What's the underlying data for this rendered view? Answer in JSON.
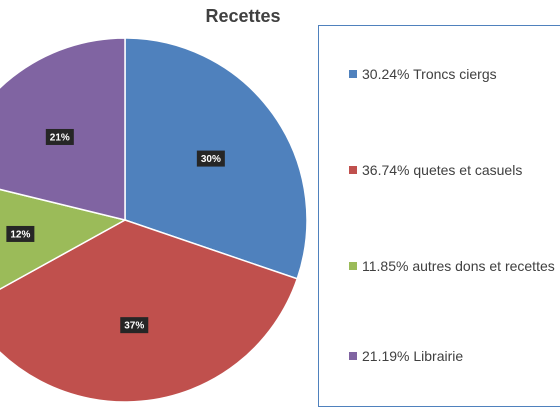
{
  "chart_data": {
    "type": "pie",
    "title": "Recettes",
    "slices": [
      {
        "legend": "30.24% Troncs ciergs",
        "value": 30.24,
        "label": "30%",
        "color": "#4f81bd"
      },
      {
        "legend": "36.74% quetes et casuels",
        "value": 36.74,
        "label": "37%",
        "color": "#c0504d"
      },
      {
        "legend": "11.85% autres dons et recettes",
        "value": 11.85,
        "label": "12%",
        "color": "#9bbb59"
      },
      {
        "legend": "21.19% Librairie",
        "value": 21.19,
        "label": "21%",
        "color": "#8064a2"
      }
    ],
    "legend_position": "right"
  }
}
